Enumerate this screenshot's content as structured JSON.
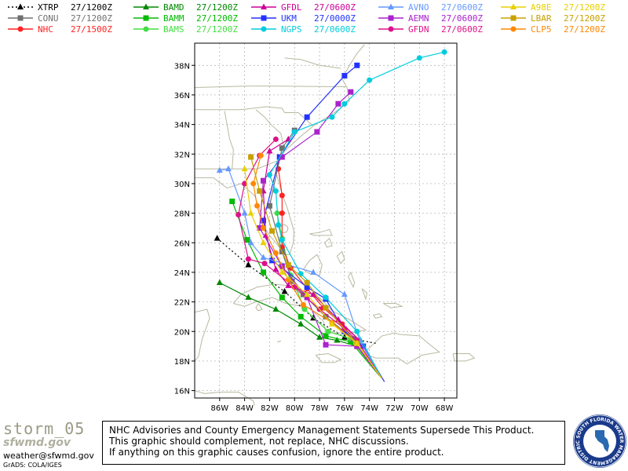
{
  "legend": [
    {
      "label": "XTRP",
      "time": "27/1200Z",
      "color": "#000000",
      "dash": true,
      "marker": "triangle"
    },
    {
      "label": "BAMD",
      "time": "27/1200Z",
      "color": "#008800",
      "dash": false,
      "marker": "triangle"
    },
    {
      "label": "GFDL",
      "time": "27/0600Z",
      "color": "#cc0099",
      "dash": false,
      "marker": "triangle"
    },
    {
      "label": "AVNO",
      "time": "27/0600Z",
      "color": "#6699ff",
      "dash": false,
      "marker": "triangle"
    },
    {
      "label": "A98E",
      "time": "27/1200Z",
      "color": "#e8d000",
      "dash": false,
      "marker": "triangle"
    },
    {
      "label": "CONU",
      "time": "27/1200Z",
      "color": "#707070",
      "dash": false,
      "marker": "square"
    },
    {
      "label": "BAMM",
      "time": "27/1200Z",
      "color": "#00bb00",
      "dash": false,
      "marker": "square"
    },
    {
      "label": "UKM",
      "time": "27/0000Z",
      "color": "#2233ff",
      "dash": false,
      "marker": "square"
    },
    {
      "label": "AEMN",
      "time": "27/0600Z",
      "color": "#aa22cc",
      "dash": false,
      "marker": "square"
    },
    {
      "label": "LBAR",
      "time": "27/1200Z",
      "color": "#c8a000",
      "dash": false,
      "marker": "square"
    },
    {
      "label": "NHC",
      "time": "27/1500Z",
      "color": "#ff2222",
      "dash": false,
      "marker": "circle"
    },
    {
      "label": "BAMS",
      "time": "27/1200Z",
      "color": "#44dd44",
      "dash": false,
      "marker": "circle"
    },
    {
      "label": "NGPS",
      "time": "27/0600Z",
      "color": "#00ccdd",
      "dash": false,
      "marker": "circle"
    },
    {
      "label": "GFDN",
      "time": "27/0600Z",
      "color": "#dd1188",
      "dash": false,
      "marker": "circle"
    },
    {
      "label": "CLP5",
      "time": "27/1200Z",
      "color": "#ff8800",
      "dash": false,
      "marker": "circle"
    }
  ],
  "axes": {
    "lon_labels": [
      "86W",
      "84W",
      "82W",
      "80W",
      "78W",
      "76W",
      "74W",
      "72W",
      "70W",
      "68W"
    ],
    "lat_labels": [
      "38N",
      "36N",
      "34N",
      "32N",
      "30N",
      "28N",
      "26N",
      "24N",
      "22N",
      "20N",
      "18N",
      "16N"
    ],
    "lon_range": [
      -88,
      -67
    ],
    "lat_range": [
      15.5,
      39.5
    ],
    "grid": true
  },
  "tracks": [
    {
      "model": "XTRP",
      "points": [
        [
          -73.5,
          19.2
        ],
        [
          -76.0,
          19.6
        ],
        [
          -78.5,
          20.9
        ],
        [
          -80.8,
          22.7
        ],
        [
          -83.7,
          24.5
        ],
        [
          -86.2,
          26.3
        ]
      ]
    },
    {
      "model": "BAMD",
      "points": [
        [
          -73.2,
          17.0
        ],
        [
          -75.0,
          19.0
        ],
        [
          -76.6,
          19.4
        ],
        [
          -78.0,
          19.6
        ],
        [
          -79.5,
          20.5
        ],
        [
          -81.5,
          21.5
        ],
        [
          -83.7,
          22.3
        ],
        [
          -86.0,
          23.3
        ]
      ]
    },
    {
      "model": "BAMM",
      "points": [
        [
          -73.2,
          17.0
        ],
        [
          -75.5,
          19.3
        ],
        [
          -77.5,
          19.7
        ],
        [
          -79.5,
          21.0
        ],
        [
          -81.0,
          22.3
        ],
        [
          -82.5,
          24.0
        ],
        [
          -83.8,
          26.2
        ],
        [
          -85.0,
          28.8
        ]
      ]
    },
    {
      "model": "BAMS",
      "points": [
        [
          -73.2,
          17.0
        ],
        [
          -75.5,
          19.5
        ],
        [
          -77.3,
          20.0
        ],
        [
          -79.2,
          21.5
        ],
        [
          -80.3,
          23.8
        ],
        [
          -81.0,
          26.3
        ],
        [
          -81.4,
          28.0
        ]
      ]
    },
    {
      "model": "NHC",
      "points": [
        [
          -73.0,
          16.8
        ],
        [
          -74.8,
          19.4
        ],
        [
          -76.2,
          20.5
        ],
        [
          -77.7,
          21.6
        ],
        [
          -79.0,
          22.9
        ],
        [
          -80.3,
          24.3
        ],
        [
          -81.0,
          25.7
        ],
        [
          -81.0,
          28.0
        ],
        [
          -81.0,
          29.2
        ],
        [
          -81.3,
          31.0
        ]
      ]
    },
    {
      "model": "CONU",
      "points": [
        [
          -73.0,
          16.8
        ],
        [
          -75.3,
          19.5
        ],
        [
          -77.5,
          21.0
        ],
        [
          -79.3,
          22.5
        ],
        [
          -80.2,
          23.4
        ],
        [
          -81.0,
          25.4
        ],
        [
          -82.0,
          28.5
        ],
        [
          -81.0,
          32.4
        ],
        [
          -80.0,
          33.6
        ]
      ]
    },
    {
      "model": "UKM",
      "points": [
        [
          -72.8,
          16.6
        ],
        [
          -74.5,
          19.0
        ],
        [
          -76.0,
          20.0
        ],
        [
          -77.5,
          22.2
        ],
        [
          -79.0,
          23.0
        ],
        [
          -81.8,
          24.8
        ],
        [
          -82.5,
          27.5
        ],
        [
          -81.2,
          31.8
        ],
        [
          -79.0,
          34.5
        ],
        [
          -76.0,
          37.3
        ],
        [
          -75.0,
          38.0
        ]
      ]
    },
    {
      "model": "GFDL",
      "points": [
        [
          -73.0,
          16.8
        ],
        [
          -74.8,
          19.4
        ],
        [
          -76.5,
          20.8
        ],
        [
          -78.5,
          22.5
        ],
        [
          -80.5,
          23.1
        ],
        [
          -81.5,
          24.2
        ],
        [
          -82.3,
          26.5
        ],
        [
          -82.5,
          29.5
        ],
        [
          -82.0,
          32.2
        ],
        [
          -80.5,
          33.0
        ]
      ]
    },
    {
      "model": "AVNO",
      "points": [
        [
          -73.0,
          16.8
        ],
        [
          -74.8,
          19.4
        ],
        [
          -76.0,
          22.5
        ],
        [
          -78.5,
          24.0
        ],
        [
          -80.5,
          24.5
        ],
        [
          -82.5,
          25.0
        ],
        [
          -83.5,
          26.0
        ],
        [
          -84.0,
          28.0
        ],
        [
          -85.3,
          31.0
        ],
        [
          -86.0,
          30.9
        ]
      ]
    },
    {
      "model": "AEMN",
      "points": [
        [
          -73.0,
          16.8
        ],
        [
          -75.0,
          19.0
        ],
        [
          -77.5,
          19.1
        ],
        [
          -79.0,
          22.3
        ],
        [
          -81.0,
          24.4
        ],
        [
          -82.8,
          27.0
        ],
        [
          -82.5,
          30.2
        ],
        [
          -81.0,
          31.8
        ],
        [
          -78.2,
          33.5
        ],
        [
          -76.5,
          35.4
        ],
        [
          -75.5,
          36.2
        ]
      ]
    },
    {
      "model": "NGPS",
      "points": [
        [
          -73.0,
          16.8
        ],
        [
          -75.0,
          20.0
        ],
        [
          -77.5,
          22.3
        ],
        [
          -79.5,
          23.9
        ],
        [
          -81.0,
          26.2
        ],
        [
          -81.3,
          27.2
        ],
        [
          -81.5,
          29.5
        ],
        [
          -82.0,
          30.6
        ],
        [
          -80.0,
          33.5
        ],
        [
          -77.0,
          34.5
        ],
        [
          -76.0,
          35.4
        ],
        [
          -74.0,
          37.0
        ],
        [
          -70.0,
          38.5
        ],
        [
          -68.0,
          38.9
        ]
      ]
    },
    {
      "model": "GFDN",
      "points": [
        [
          -73.0,
          16.8
        ],
        [
          -75.0,
          19.4
        ],
        [
          -76.0,
          20.2
        ],
        [
          -78.0,
          21.5
        ],
        [
          -80.0,
          23.0
        ],
        [
          -82.4,
          24.6
        ],
        [
          -83.7,
          24.9
        ],
        [
          -84.5,
          27.9
        ],
        [
          -84.0,
          30.0
        ],
        [
          -82.8,
          31.9
        ],
        [
          -81.5,
          33.0
        ]
      ]
    },
    {
      "model": "CLP5",
      "points": [
        [
          -73.0,
          16.8
        ],
        [
          -75.0,
          19.2
        ],
        [
          -77.0,
          20.6
        ],
        [
          -79.3,
          21.8
        ],
        [
          -80.5,
          23.5
        ],
        [
          -81.5,
          25.3
        ],
        [
          -82.5,
          27.0
        ],
        [
          -83.0,
          28.5
        ],
        [
          -83.3,
          30.0
        ],
        [
          -82.7,
          31.9
        ]
      ]
    },
    {
      "model": "LBAR",
      "points": [
        [
          -73.0,
          16.8
        ],
        [
          -75.0,
          19.2
        ],
        [
          -77.5,
          21.6
        ],
        [
          -79.0,
          23.3
        ],
        [
          -80.5,
          24.5
        ],
        [
          -81.8,
          26.8
        ],
        [
          -82.8,
          29.5
        ],
        [
          -83.5,
          31.8
        ]
      ]
    },
    {
      "model": "A98E",
      "points": [
        [
          -73.0,
          16.8
        ],
        [
          -75.0,
          19.2
        ],
        [
          -77.0,
          20.5
        ],
        [
          -79.0,
          22.5
        ],
        [
          -81.0,
          24.0
        ],
        [
          -82.5,
          26.0
        ],
        [
          -83.5,
          28.0
        ],
        [
          -84.0,
          31.0
        ]
      ]
    }
  ],
  "footer": {
    "storm_name": "storm_05",
    "logo_text": "sfwmd.gov",
    "email": "weather@sfwmd.gov",
    "grads_credit": "GrADS: COLA/IGES",
    "disclaimer_lines": [
      "NHC Advisories and County Emergency Management Statements Supersede This Product.",
      "This graphic should complement, not replace, NHC discussions.",
      "If anything on this graphic causes confusion, ignore the entire product."
    ],
    "seal_text": "SOUTH FLORIDA WATER MANAGEMENT DISTRICT"
  }
}
